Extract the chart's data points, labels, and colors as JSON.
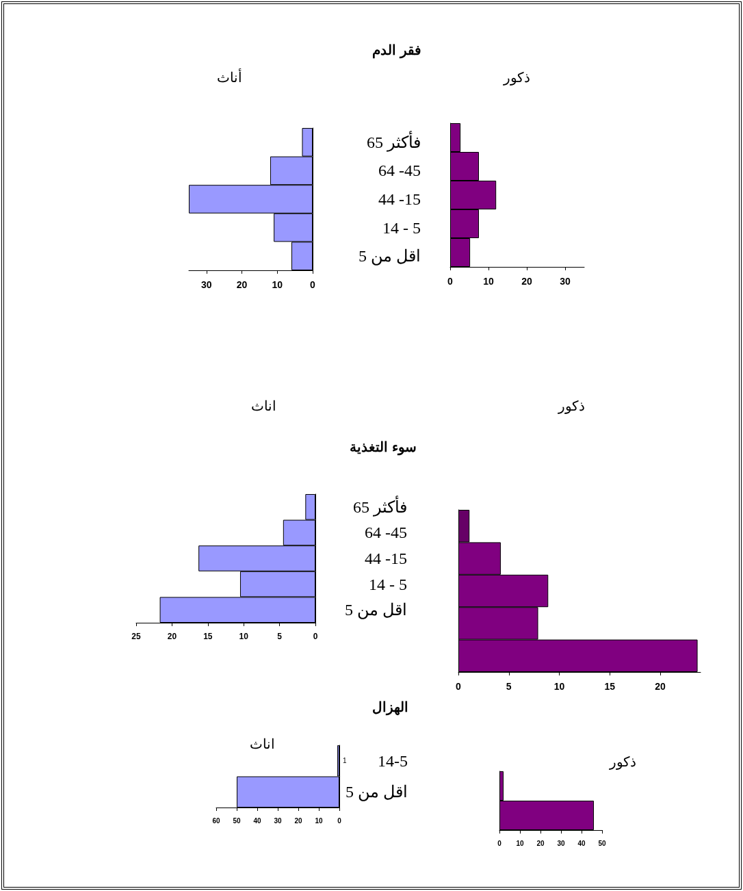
{
  "chart_data": [
    {
      "type": "bar",
      "orientation": "horizontal",
      "title": "فقر الدم",
      "subtitle": "أناث",
      "categories": [
        "65 فأكثر",
        "64 -45",
        "44 -15",
        "14 - 5",
        "اقل من 5"
      ],
      "values": [
        3,
        12,
        35,
        11,
        6
      ],
      "color": "#9999ff",
      "xlim": [
        35,
        0
      ],
      "xticks": [
        0,
        10,
        20,
        30
      ],
      "grid": false
    },
    {
      "type": "bar",
      "orientation": "horizontal",
      "subtitle": "ذكور",
      "categories": [
        null,
        null,
        null,
        null,
        null
      ],
      "values": [
        2.7,
        7.5,
        12,
        7.5,
        5.2
      ],
      "color": "#800080",
      "xlim": [
        0,
        35
      ],
      "xticks": [
        0,
        10,
        20,
        30
      ],
      "grid": false
    },
    {
      "type": "bar",
      "orientation": "horizontal",
      "title": "سوء التغذية",
      "subtitle": "اناث",
      "categories": [
        "65 فأكثر",
        "64 -45",
        "44 -15",
        "14 - 5",
        "اقل من 5"
      ],
      "values": [
        1.4,
        4.5,
        16.3,
        10.5,
        21.7
      ],
      "color": "#9999ff",
      "xlim": [
        25,
        0
      ],
      "xticks": [
        0,
        5,
        10,
        15,
        20,
        25
      ],
      "grid": false
    },
    {
      "type": "bar",
      "orientation": "horizontal",
      "subtitle": "ذكور",
      "categories": [
        null,
        null,
        null,
        null,
        null
      ],
      "values": [
        1.1,
        4.2,
        8.9,
        7.9,
        23.7
      ],
      "colors": [
        "#660066",
        "#800080",
        "#800080",
        "#800080",
        "#800080"
      ],
      "xlim": [
        0,
        24
      ],
      "xticks": [
        0,
        5,
        10,
        15,
        20
      ],
      "grid": false
    },
    {
      "type": "bar",
      "orientation": "horizontal",
      "title": "الهزال",
      "subtitle": "اناث",
      "categories": [
        "14-5",
        "اقل من 5"
      ],
      "values": [
        1,
        50
      ],
      "value_labels": [
        "1",
        null
      ],
      "color": "#9999ff",
      "xlim": [
        60,
        0
      ],
      "xticks": [
        0,
        10,
        20,
        30,
        40,
        50,
        60
      ],
      "grid": false
    },
    {
      "type": "bar",
      "orientation": "horizontal",
      "subtitle": "ذكور",
      "categories": [
        null,
        null
      ],
      "values": [
        2,
        46
      ],
      "color": "#800080",
      "xlim": [
        0,
        50
      ],
      "xticks": [
        0,
        10,
        20,
        30,
        40,
        50
      ],
      "grid": false
    }
  ]
}
